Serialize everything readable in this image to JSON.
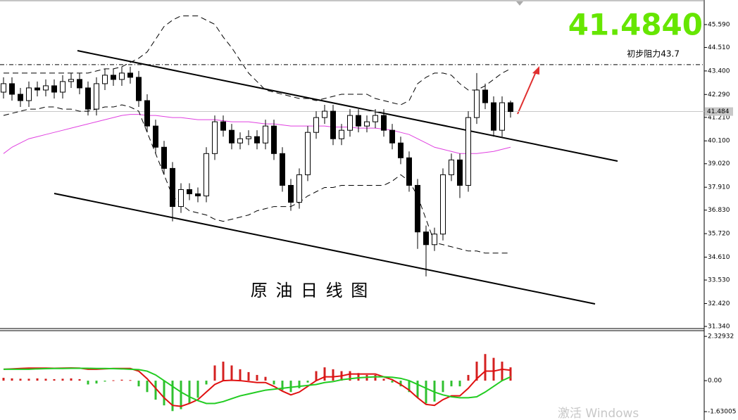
{
  "chart_data": [
    {
      "type": "candlestick",
      "title": "原 油 日 线 图",
      "open": [
        42.4,
        42.8,
        42.3,
        42.0,
        42.6,
        42.5,
        42.7,
        42.4,
        42.9,
        43.0,
        42.6,
        41.6,
        42.8,
        43.2,
        43.0,
        43.3,
        43.1,
        42.0,
        40.8,
        39.8,
        38.8,
        37.0,
        37.8,
        37.6,
        37.5,
        39.5,
        41.0,
        40.6,
        40.0,
        40.2,
        40.3,
        40.0,
        40.8,
        39.5,
        38.0,
        37.2,
        38.5,
        40.5,
        41.2,
        41.5,
        40.2,
        40.6,
        41.3,
        40.8,
        41.0,
        41.3,
        40.6,
        40.0,
        39.3,
        38.0,
        35.8,
        35.2,
        35.7,
        38.5,
        39.2,
        38.0,
        41.2,
        42.5,
        41.9,
        40.6,
        41.9
      ],
      "high": [
        43.1,
        43.1,
        42.6,
        42.9,
        42.9,
        43.0,
        43.0,
        43.2,
        43.3,
        43.3,
        42.9,
        43.1,
        43.5,
        43.5,
        43.6,
        43.6,
        43.4,
        42.3,
        41.1,
        40.1,
        39.1,
        38.1,
        38.1,
        37.9,
        39.8,
        41.3,
        41.3,
        40.9,
        40.5,
        40.6,
        40.6,
        41.1,
        41.1,
        39.8,
        38.3,
        38.8,
        40.8,
        41.5,
        41.8,
        41.8,
        40.9,
        41.6,
        41.6,
        41.3,
        41.6,
        41.6,
        40.9,
        40.3,
        39.6,
        38.3,
        36.1,
        36.0,
        38.8,
        39.5,
        39.5,
        41.5,
        43.3,
        42.8,
        42.2,
        42.2,
        42.0
      ],
      "low": [
        42.1,
        42.0,
        41.7,
        41.7,
        42.2,
        42.2,
        42.1,
        42.1,
        42.6,
        42.3,
        41.3,
        41.3,
        42.5,
        42.7,
        42.7,
        42.8,
        41.7,
        40.5,
        39.5,
        38.5,
        36.3,
        36.7,
        37.3,
        37.2,
        37.2,
        39.2,
        40.3,
        39.7,
        39.7,
        39.9,
        39.7,
        39.7,
        39.2,
        37.7,
        36.8,
        36.9,
        38.2,
        40.2,
        40.9,
        39.9,
        39.9,
        40.3,
        40.5,
        40.5,
        40.7,
        40.3,
        39.7,
        39.0,
        37.7,
        35.0,
        33.7,
        34.9,
        35.4,
        38.2,
        37.4,
        37.7,
        40.9,
        41.6,
        40.3,
        40.3,
        41.2
      ],
      "close": [
        42.8,
        42.3,
        42.0,
        42.6,
        42.5,
        42.7,
        42.4,
        42.9,
        43.0,
        42.6,
        41.6,
        42.8,
        43.2,
        43.0,
        43.3,
        43.1,
        42.0,
        40.8,
        39.8,
        38.8,
        37.0,
        37.8,
        37.6,
        37.5,
        39.5,
        41.0,
        40.6,
        40.0,
        40.2,
        40.3,
        40.0,
        40.8,
        39.5,
        38.0,
        37.2,
        38.5,
        40.5,
        41.2,
        41.5,
        40.2,
        40.6,
        41.3,
        40.8,
        41.0,
        41.3,
        40.6,
        40.0,
        39.3,
        38.0,
        35.8,
        35.2,
        35.7,
        38.5,
        39.2,
        38.0,
        41.2,
        42.5,
        41.9,
        40.6,
        41.9,
        41.484
      ],
      "series": [
        {
          "color": "#e040e0",
          "style": "solid",
          "values": [
            39.5,
            39.8,
            40.0,
            40.2,
            40.3,
            40.4,
            40.5,
            40.6,
            40.7,
            40.8,
            40.9,
            41.0,
            41.1,
            41.2,
            41.3,
            41.35,
            41.35,
            41.3,
            41.3,
            41.25,
            41.2,
            41.2,
            41.15,
            41.1,
            41.1,
            41.1,
            41.05,
            41.0,
            41.0,
            41.0,
            40.95,
            40.9,
            40.9,
            40.85,
            40.8,
            40.8,
            40.8,
            40.8,
            40.8,
            40.75,
            40.75,
            40.75,
            40.7,
            40.7,
            40.7,
            40.65,
            40.6,
            40.5,
            40.4,
            40.2,
            40.0,
            39.8,
            39.7,
            39.6,
            39.5,
            39.5,
            39.5,
            39.55,
            39.6,
            39.7,
            39.8
          ]
        },
        {
          "color": "#000000",
          "style": "dashed",
          "values": [
            43.3,
            43.3,
            43.3,
            43.3,
            43.3,
            43.3,
            43.3,
            43.3,
            43.3,
            43.3,
            43.3,
            43.4,
            43.5,
            43.5,
            43.6,
            43.8,
            44.0,
            44.3,
            44.9,
            45.5,
            45.8,
            46.0,
            46.0,
            46.0,
            45.8,
            45.6,
            45.0,
            44.5,
            43.9,
            43.3,
            42.9,
            42.5,
            42.4,
            42.3,
            42.2,
            42.1,
            42.1,
            42.0,
            42.1,
            42.2,
            42.3,
            42.3,
            42.3,
            42.3,
            42.1,
            42.0,
            41.9,
            41.8,
            42.0,
            42.8,
            43.1,
            43.3,
            43.3,
            43.2,
            42.8,
            42.5,
            42.5,
            42.7,
            43.0,
            43.3,
            43.5
          ]
        },
        {
          "color": "#000000",
          "style": "dashed",
          "values": [
            41.3,
            41.4,
            41.5,
            41.6,
            41.6,
            41.7,
            41.7,
            41.6,
            41.6,
            41.5,
            41.5,
            41.6,
            41.7,
            41.7,
            41.8,
            41.7,
            41.5,
            40.5,
            39.5,
            38.5,
            37.5,
            37.1,
            36.8,
            36.7,
            36.6,
            36.4,
            36.3,
            36.4,
            36.5,
            36.6,
            36.8,
            36.9,
            37.0,
            37.0,
            37.0,
            37.2,
            37.5,
            37.7,
            37.9,
            37.9,
            38.0,
            38.0,
            38.0,
            38.0,
            38.0,
            38.0,
            38.2,
            38.5,
            38.2,
            37.5,
            36.4,
            35.3,
            35.2,
            35.1,
            35.0,
            34.9,
            34.9,
            34.8,
            34.8,
            34.8,
            34.8
          ]
        }
      ],
      "last_price": {
        "value": 41.484,
        "label": "41.4840"
      },
      "resistance": {
        "value": 43.7,
        "label": "初步阻力43.7"
      },
      "ylim": [
        31.24,
        46.75
      ],
      "yticks": [
        {
          "value": 45.59,
          "label": "45.590"
        },
        {
          "value": 44.51,
          "label": "44.510"
        },
        {
          "value": 43.4,
          "label": "43.400"
        },
        {
          "value": 42.29,
          "label": "42.290"
        },
        {
          "value": 41.21,
          "label": "41.210"
        },
        {
          "value": 40.1,
          "label": "40.100"
        },
        {
          "value": 39.02,
          "label": "39.020"
        },
        {
          "value": 37.91,
          "label": "37.910"
        },
        {
          "value": 36.83,
          "label": "36.830"
        },
        {
          "value": 35.72,
          "label": "35.720"
        },
        {
          "value": 34.61,
          "label": "34.610"
        },
        {
          "value": 33.53,
          "label": "33.530"
        },
        {
          "value": 32.42,
          "label": "32.420"
        },
        {
          "value": 31.34,
          "label": "31.340"
        }
      ]
    },
    {
      "type": "macd",
      "histogram": {
        "positive_color": "#d42020",
        "negative_color": "#30c030",
        "values": [
          0.15,
          0.12,
          0.1,
          0.1,
          0.12,
          0.1,
          0.08,
          0.1,
          0.12,
          0.08,
          -0.2,
          -0.15,
          -0.05,
          0.02,
          0.05,
          0.03,
          -0.3,
          -0.6,
          -1.0,
          -1.3,
          -1.6,
          -1.5,
          -1.2,
          -0.9,
          -0.2,
          0.8,
          1.0,
          0.8,
          0.6,
          0.45,
          0.3,
          0.2,
          -0.2,
          -0.5,
          -0.6,
          -0.4,
          -0.1,
          0.5,
          0.7,
          0.6,
          0.5,
          0.5,
          0.4,
          0.3,
          0.3,
          0.1,
          -0.1,
          -0.3,
          -0.6,
          -0.9,
          -1.2,
          -1.1,
          -0.6,
          -0.3,
          -0.3,
          0.3,
          1.0,
          1.4,
          1.2,
          1.0,
          0.7
        ]
      },
      "series": [
        {
          "color": "#e01010",
          "values": [
            0.6,
            0.62,
            0.64,
            0.66,
            0.66,
            0.66,
            0.65,
            0.66,
            0.67,
            0.66,
            0.6,
            0.6,
            0.62,
            0.64,
            0.64,
            0.64,
            0.5,
            0.1,
            -0.4,
            -0.9,
            -1.3,
            -1.35,
            -1.2,
            -1.0,
            -0.6,
            -0.2,
            0.0,
            0.02,
            0.0,
            -0.05,
            -0.1,
            -0.1,
            -0.3,
            -0.55,
            -0.75,
            -0.6,
            -0.3,
            0.0,
            0.2,
            0.2,
            0.25,
            0.35,
            0.35,
            0.35,
            0.35,
            0.2,
            0.05,
            -0.2,
            -0.5,
            -0.9,
            -1.25,
            -1.3,
            -1.0,
            -0.8,
            -0.8,
            -0.4,
            0.1,
            0.5,
            0.5,
            0.6,
            0.55
          ]
        },
        {
          "color": "#22cc22",
          "values": [
            0.6,
            0.6,
            0.6,
            0.6,
            0.62,
            0.63,
            0.64,
            0.64,
            0.65,
            0.65,
            0.65,
            0.64,
            0.64,
            0.63,
            0.62,
            0.6,
            0.58,
            0.5,
            0.3,
            0.0,
            -0.3,
            -0.6,
            -0.85,
            -1.05,
            -1.2,
            -1.2,
            -1.1,
            -0.95,
            -0.8,
            -0.7,
            -0.6,
            -0.5,
            -0.45,
            -0.4,
            -0.35,
            -0.3,
            -0.25,
            -0.2,
            -0.1,
            -0.05,
            0.05,
            0.1,
            0.15,
            0.18,
            0.2,
            0.2,
            0.18,
            0.12,
            0.0,
            -0.2,
            -0.4,
            -0.6,
            -0.75,
            -0.85,
            -0.9,
            -0.9,
            -0.85,
            -0.6,
            -0.3,
            0.0,
            0.2
          ]
        }
      ],
      "ylim": [
        -2.07,
        2.63
      ],
      "yticks": [
        2.32932,
        {
          "value": 0,
          "label": "0.00"
        },
        -1.63005
      ]
    }
  ],
  "watermark": "激活 Windows"
}
